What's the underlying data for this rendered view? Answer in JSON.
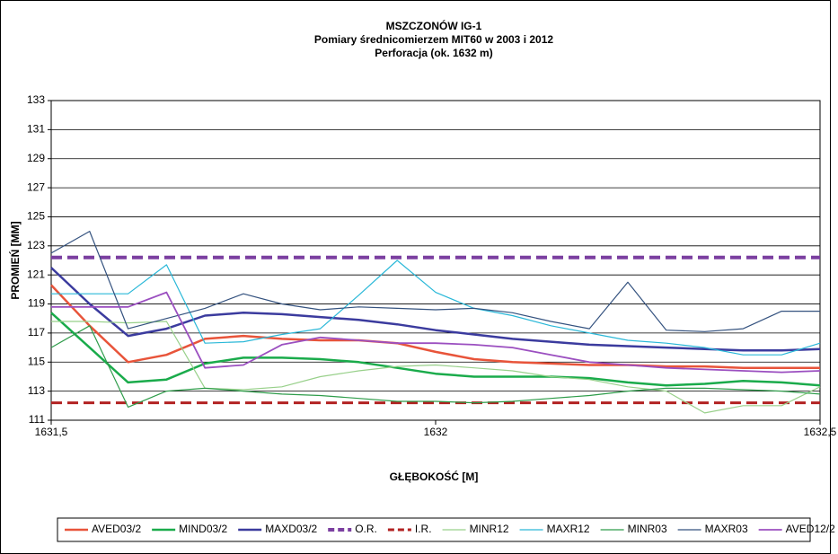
{
  "chart_data": {
    "type": "line",
    "title": [
      "MSZCZONÓW IG-1",
      "Pomiary średnicomierzem MIT60 w 2003 i 2012",
      "Perforacja (ok. 1632 m)"
    ],
    "x_label": "GŁĘBOKOŚĆ [M]",
    "y_label": "PROMIEŃ [MM]",
    "x": [
      1631.5,
      1631.55,
      1631.6,
      1631.65,
      1631.7,
      1631.75,
      1631.8,
      1631.85,
      1631.9,
      1631.95,
      1632,
      1632.05,
      1632.1,
      1632.15,
      1632.2,
      1632.25,
      1632.3,
      1632.35,
      1632.4,
      1632.45,
      1632.5
    ],
    "xlim": [
      1631.5,
      1632.5
    ],
    "xticks": [
      {
        "value": 1631.5,
        "label": "1631,5"
      },
      1632,
      {
        "value": 1632.5,
        "label": "1632,5"
      }
    ],
    "ylim": [
      111,
      133
    ],
    "yticks": [
      111,
      113,
      115,
      117,
      119,
      121,
      123,
      125,
      127,
      129,
      131,
      133
    ],
    "grid": true,
    "legend": "bottom",
    "series": [
      {
        "name": "AVED03/2",
        "color": "#e8543a",
        "width": 2.5,
        "values": [
          120.3,
          117.5,
          115.0,
          115.5,
          116.6,
          116.8,
          116.6,
          116.5,
          116.5,
          116.3,
          115.7,
          115.2,
          115.0,
          114.9,
          114.8,
          114.8,
          114.7,
          114.7,
          114.6,
          114.6,
          114.6
        ]
      },
      {
        "name": "MIND03/2",
        "color": "#1aab4b",
        "width": 2.5,
        "values": [
          118.4,
          116.0,
          113.6,
          113.8,
          114.9,
          115.3,
          115.3,
          115.2,
          115.0,
          114.6,
          114.2,
          114.0,
          114.0,
          114.0,
          113.9,
          113.6,
          113.4,
          113.5,
          113.7,
          113.6,
          113.4
        ]
      },
      {
        "name": "MAXD03/2",
        "color": "#3b3b9e",
        "width": 2.5,
        "values": [
          121.5,
          119.0,
          116.8,
          117.3,
          118.2,
          118.4,
          118.3,
          118.1,
          117.9,
          117.6,
          117.2,
          116.9,
          116.6,
          116.4,
          116.2,
          116.1,
          116.0,
          115.9,
          115.8,
          115.8,
          115.9
        ]
      },
      {
        "name": "O.R.",
        "color": "#7b3fa0",
        "width": 4,
        "dash": true,
        "values": [
          122.2,
          122.2,
          122.2,
          122.2,
          122.2,
          122.2,
          122.2,
          122.2,
          122.2,
          122.2,
          122.2,
          122.2,
          122.2,
          122.2,
          122.2,
          122.2,
          122.2,
          122.2,
          122.2,
          122.2,
          122.2
        ]
      },
      {
        "name": "I.R.",
        "color": "#b22222",
        "width": 3,
        "dash": true,
        "values": [
          112.2,
          112.2,
          112.2,
          112.2,
          112.2,
          112.2,
          112.2,
          112.2,
          112.2,
          112.2,
          112.2,
          112.2,
          112.2,
          112.2,
          112.2,
          112.2,
          112.2,
          112.2,
          112.2,
          112.2,
          112.2
        ]
      },
      {
        "name": "MINR12",
        "color": "#98d08a",
        "width": 1.2,
        "values": [
          117.8,
          117.8,
          117.7,
          117.8,
          113.2,
          113.1,
          113.3,
          114.0,
          114.4,
          114.7,
          114.8,
          114.6,
          114.4,
          114.0,
          113.8,
          113.3,
          113.0,
          111.5,
          112.0,
          112.0,
          113.3
        ]
      },
      {
        "name": "MAXR12",
        "color": "#2ab8d8",
        "width": 1.2,
        "values": [
          119.7,
          119.7,
          119.7,
          121.7,
          116.3,
          116.4,
          116.9,
          117.3,
          119.6,
          122.0,
          119.8,
          118.7,
          118.2,
          117.5,
          117.0,
          116.5,
          116.3,
          116.0,
          115.5,
          115.5,
          116.3
        ]
      },
      {
        "name": "MINR03",
        "color": "#2e9c4a",
        "width": 1.2,
        "values": [
          116.0,
          117.5,
          111.9,
          113.0,
          113.2,
          113.0,
          112.8,
          112.7,
          112.5,
          112.3,
          112.3,
          112.2,
          112.3,
          112.5,
          112.7,
          113.0,
          113.2,
          113.2,
          113.1,
          113.0,
          112.8
        ]
      },
      {
        "name": "MAXR03",
        "color": "#34527f",
        "width": 1.2,
        "values": [
          122.5,
          124.0,
          117.3,
          118.0,
          118.7,
          119.7,
          119.0,
          118.6,
          118.8,
          118.7,
          118.6,
          118.7,
          118.4,
          117.8,
          117.3,
          120.5,
          117.2,
          117.1,
          117.3,
          118.5,
          118.5
        ]
      },
      {
        "name": "AVED12/2",
        "color": "#9b4fc0",
        "width": 1.8,
        "values": [
          118.8,
          118.8,
          118.8,
          119.8,
          114.6,
          114.8,
          116.2,
          116.7,
          116.5,
          116.3,
          116.3,
          116.2,
          116.0,
          115.5,
          115.0,
          114.8,
          114.6,
          114.5,
          114.4,
          114.3,
          114.4
        ]
      }
    ]
  }
}
